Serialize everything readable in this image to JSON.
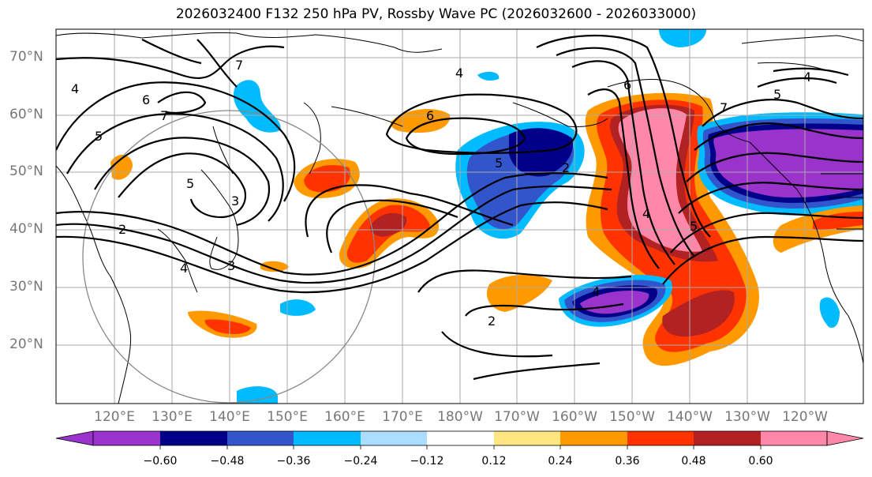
{
  "title": "2026032400 F132 250 hPa PV, Rossby Wave PC (2026032600 - 2026033000)",
  "lat_labels": [
    "70°N",
    "60°N",
    "50°N",
    "40°N",
    "30°N",
    "20°N"
  ],
  "lon_labels": [
    "120°E",
    "130°E",
    "140°E",
    "150°E",
    "160°E",
    "170°E",
    "180°W",
    "170°W",
    "160°W",
    "150°W",
    "140°W",
    "130°W",
    "120°W"
  ],
  "contour_labels": [
    "7",
    "6",
    "7",
    "5",
    "4",
    "4",
    "6",
    "5",
    "6",
    "7",
    "5",
    "4",
    "5",
    "4",
    "2",
    "2",
    "4",
    "2",
    "3",
    "4",
    "3",
    "5"
  ],
  "colorbar": {
    "ticks": [
      "−0.60",
      "−0.48",
      "−0.36",
      "−0.24",
      "−0.12",
      "0.12",
      "0.24",
      "0.36",
      "0.48",
      "0.60"
    ],
    "colors": [
      "#9933cc",
      "#000088",
      "#3355cc",
      "#00bbff",
      "#aaddff",
      "#ffffff",
      "#ffe680",
      "#ff9900",
      "#ff3300",
      "#b22222",
      "#ff88aa"
    ]
  }
}
